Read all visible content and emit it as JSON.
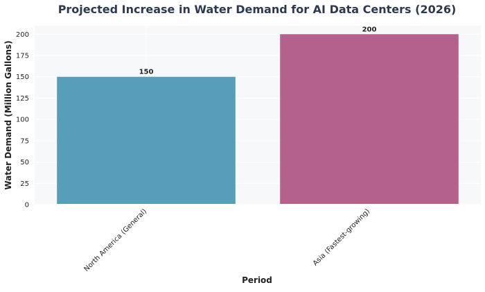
{
  "chart_data": {
    "type": "bar",
    "title": "Projected Increase in Water Demand for AI Data Centers (2026)",
    "xlabel": "Period",
    "ylabel": "Water Demand (Million Gallons)",
    "categories": [
      "North America (General)",
      "Asia (Fastest-growing)"
    ],
    "values": [
      150,
      200
    ],
    "data_labels": [
      "150",
      "200"
    ],
    "bar_colors": [
      "#569eb9",
      "#b4628c"
    ],
    "ylim": [
      0,
      210
    ],
    "yticks": [
      0,
      25,
      50,
      75,
      100,
      125,
      150,
      175,
      200
    ],
    "grid": true,
    "legend": "none",
    "colors": {
      "plot_background": "#f7f8fa",
      "title": "#2b3a4f"
    }
  }
}
